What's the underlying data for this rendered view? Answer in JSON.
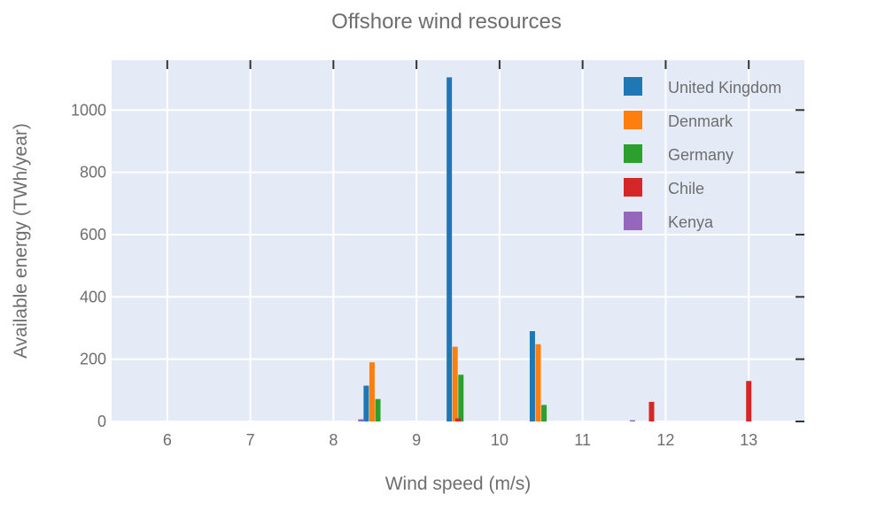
{
  "chart_data": {
    "type": "bar",
    "title": "Offshore wind resources",
    "xlabel": "Wind speed (m/s)",
    "ylabel": "Available energy (TWh/year)",
    "xlim": [
      5.33,
      13.67
    ],
    "ylim": [
      0,
      1160
    ],
    "xticks": [
      6,
      7,
      8,
      9,
      10,
      11,
      12,
      13
    ],
    "yticks": [
      0,
      200,
      400,
      600,
      800,
      1000
    ],
    "grid": true,
    "legend_position": "top-right",
    "series": [
      {
        "name": "United Kingdom",
        "color": "#1f77b4",
        "x": [
          8.5,
          9.5,
          10.5
        ],
        "values": [
          115,
          1105,
          290
        ]
      },
      {
        "name": "Denmark",
        "color": "#ff7f0e",
        "x": [
          8.5,
          9.5,
          10.5
        ],
        "values": [
          190,
          240,
          248
        ]
      },
      {
        "name": "Germany",
        "color": "#2ca02c",
        "x": [
          8.5,
          9.5,
          10.5
        ],
        "values": [
          72,
          150,
          53
        ]
      },
      {
        "name": "Chile",
        "color": "#d62728",
        "x": [
          9.5,
          11.83,
          13.0
        ],
        "values": [
          10,
          63,
          130
        ]
      },
      {
        "name": "Kenya",
        "color": "#9467bd",
        "x": [
          8.33,
          11.6
        ],
        "values": [
          7,
          4
        ]
      }
    ]
  }
}
